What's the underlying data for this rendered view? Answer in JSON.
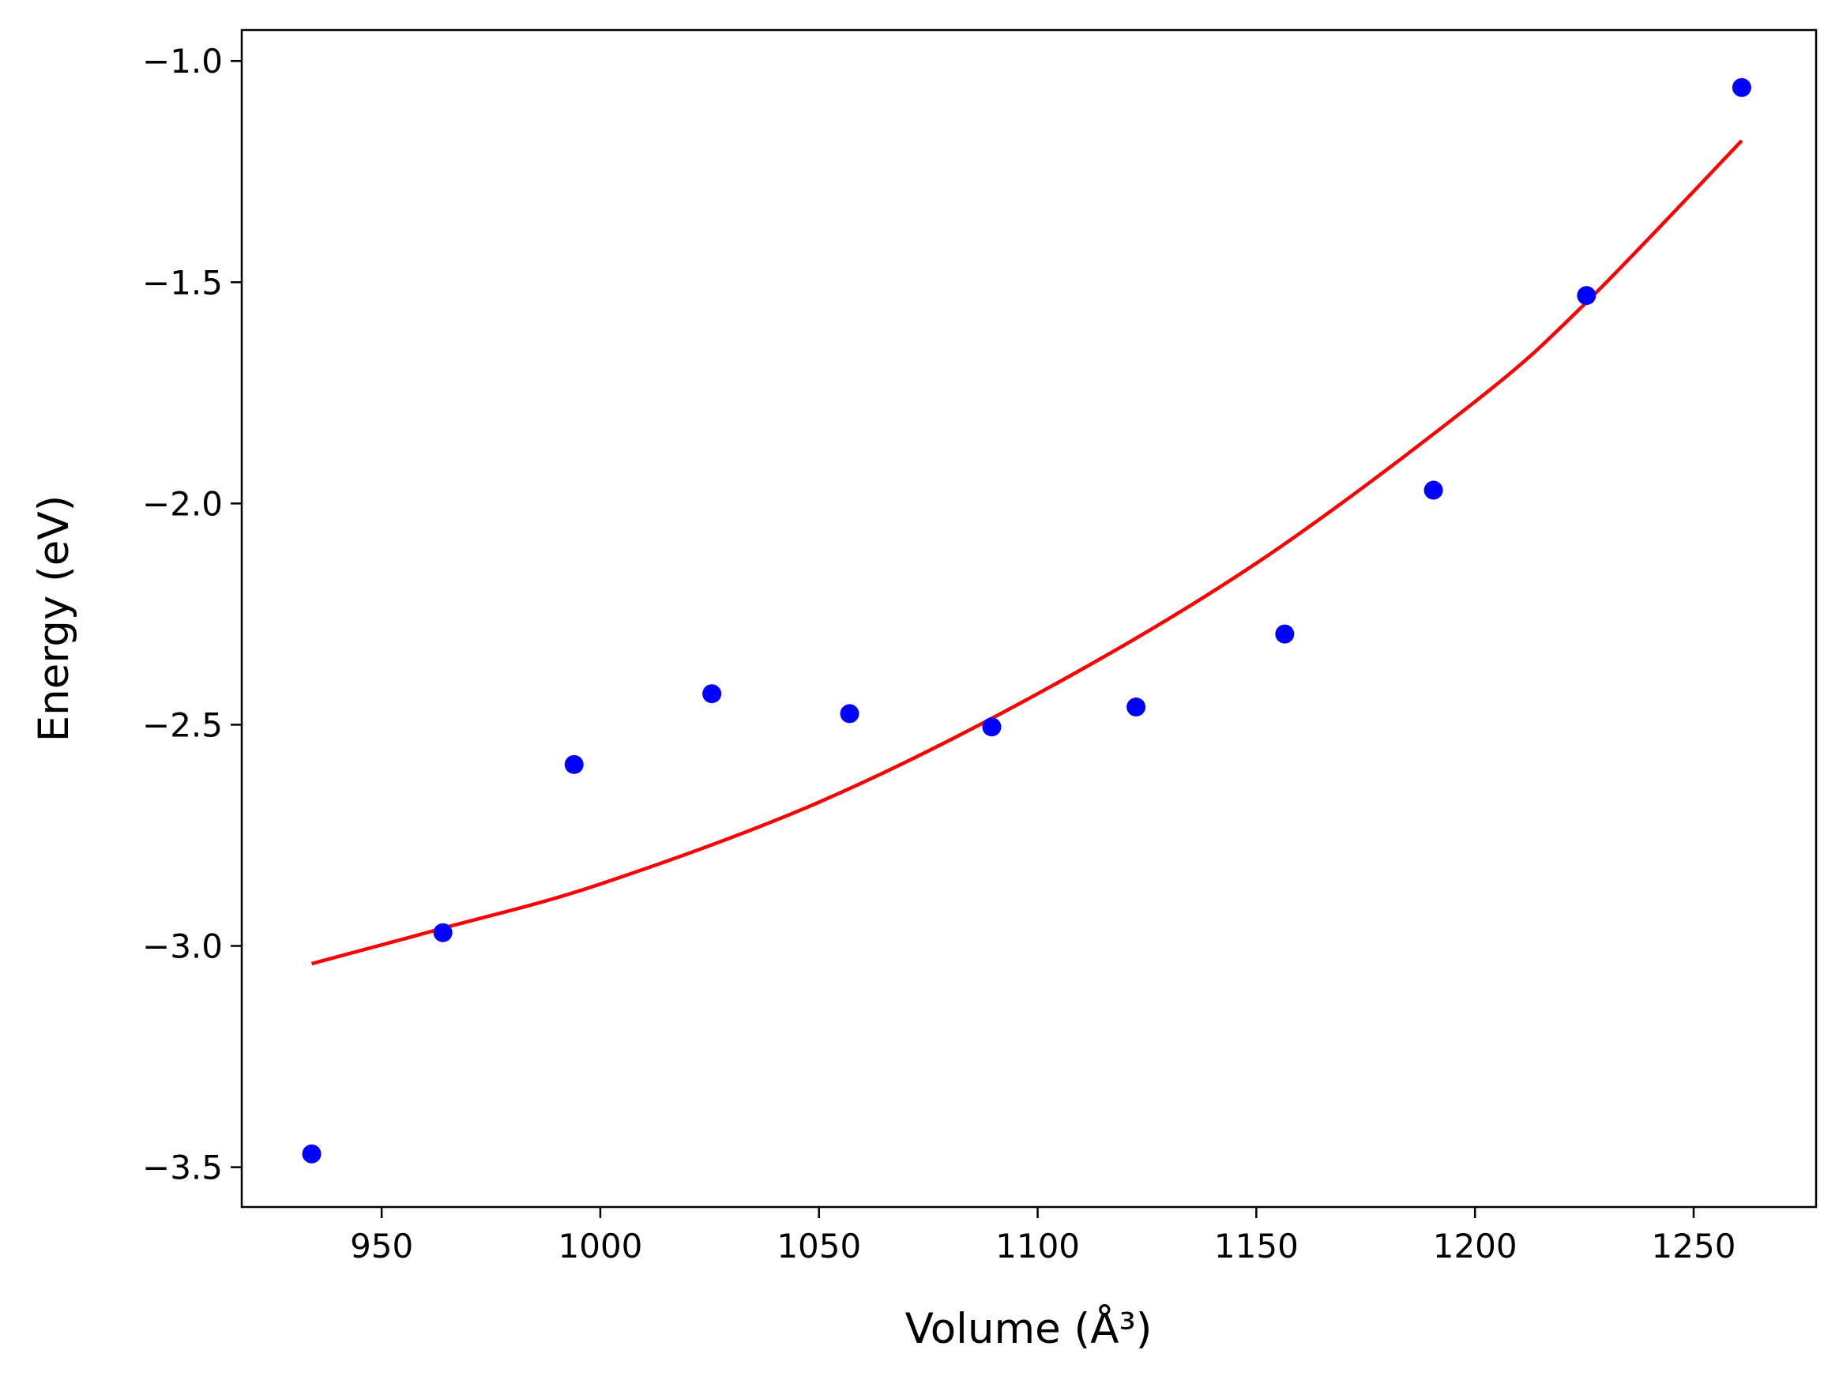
{
  "chart_data": {
    "type": "scatter",
    "xlabel": "Volume (Å³)",
    "ylabel": "Energy (eV)",
    "xlim": [
      918,
      1278
    ],
    "ylim": [
      -3.59,
      -0.93
    ],
    "xticks": [
      950,
      1000,
      1050,
      1100,
      1150,
      1200,
      1250
    ],
    "yticks": [
      -3.5,
      -3.0,
      -2.5,
      -2.0,
      -1.5,
      -1.0
    ],
    "xtick_labels": [
      "950",
      "1000",
      "1050",
      "1100",
      "1150",
      "1200",
      "1250"
    ],
    "ytick_labels": [
      "−3.5",
      "−3.0",
      "−2.5",
      "−2.0",
      "−1.5",
      "−1.0"
    ],
    "grid": false,
    "series": [
      {
        "kind": "points",
        "color": "#0000ff",
        "x": [
          934,
          964,
          994,
          1025.5,
          1057,
          1089.5,
          1122.5,
          1156.5,
          1190.5,
          1225.5,
          1261
        ],
        "y": [
          -3.47,
          -2.97,
          -2.59,
          -2.43,
          -2.475,
          -2.505,
          -2.46,
          -2.295,
          -1.97,
          -1.53,
          -1.06
        ]
      },
      {
        "kind": "line",
        "color": "#ff0000",
        "x": [
          934,
          964,
          1000,
          1050,
          1100,
          1150,
          1200,
          1225,
          1261
        ],
        "y": [
          -3.04,
          -2.96,
          -2.86,
          -2.675,
          -2.43,
          -2.135,
          -1.77,
          -1.55,
          -1.18
        ]
      }
    ]
  }
}
